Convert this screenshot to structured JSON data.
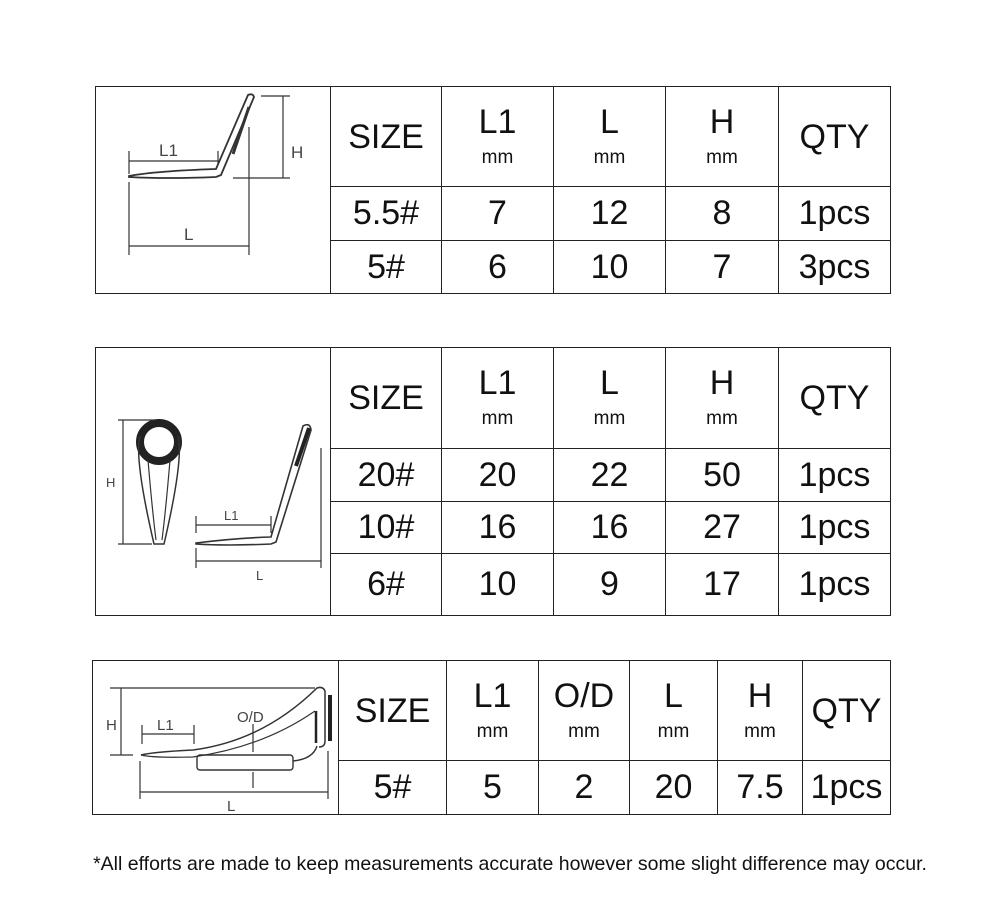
{
  "tables": [
    {
      "diagram_labels": {
        "l1": "L1",
        "l": "L",
        "h": "H"
      },
      "headers": [
        {
          "label": "SIZE",
          "unit": ""
        },
        {
          "label": "L1",
          "unit": "mm"
        },
        {
          "label": "L",
          "unit": "mm"
        },
        {
          "label": "H",
          "unit": "mm"
        },
        {
          "label": "QTY",
          "unit": ""
        }
      ],
      "rows": [
        [
          "5.5#",
          "7",
          "12",
          "8",
          "1pcs"
        ],
        [
          "5#",
          "6",
          "10",
          "7",
          "3pcs"
        ]
      ]
    },
    {
      "diagram_labels": {
        "l1": "L1",
        "l": "L",
        "h": "H"
      },
      "headers": [
        {
          "label": "SIZE",
          "unit": ""
        },
        {
          "label": "L1",
          "unit": "mm"
        },
        {
          "label": "L",
          "unit": "mm"
        },
        {
          "label": "H",
          "unit": "mm"
        },
        {
          "label": "QTY",
          "unit": ""
        }
      ],
      "rows": [
        [
          "20#",
          "20",
          "22",
          "50",
          "1pcs"
        ],
        [
          "10#",
          "16",
          "16",
          "27",
          "1pcs"
        ],
        [
          "6#",
          "10",
          "9",
          "17",
          "1pcs"
        ]
      ]
    },
    {
      "diagram_labels": {
        "l1": "L1",
        "l": "L",
        "h": "H",
        "od": "O/D"
      },
      "headers": [
        {
          "label": "SIZE",
          "unit": ""
        },
        {
          "label": "L1",
          "unit": "mm"
        },
        {
          "label": "O/D",
          "unit": "mm"
        },
        {
          "label": "L",
          "unit": "mm"
        },
        {
          "label": "H",
          "unit": "mm"
        },
        {
          "label": "QTY",
          "unit": ""
        }
      ],
      "rows": [
        [
          "5#",
          "5",
          "2",
          "20",
          "7.5",
          "1pcs"
        ]
      ]
    }
  ],
  "footnote": "*All efforts are made to keep measurements accurate however some slight difference may occur."
}
